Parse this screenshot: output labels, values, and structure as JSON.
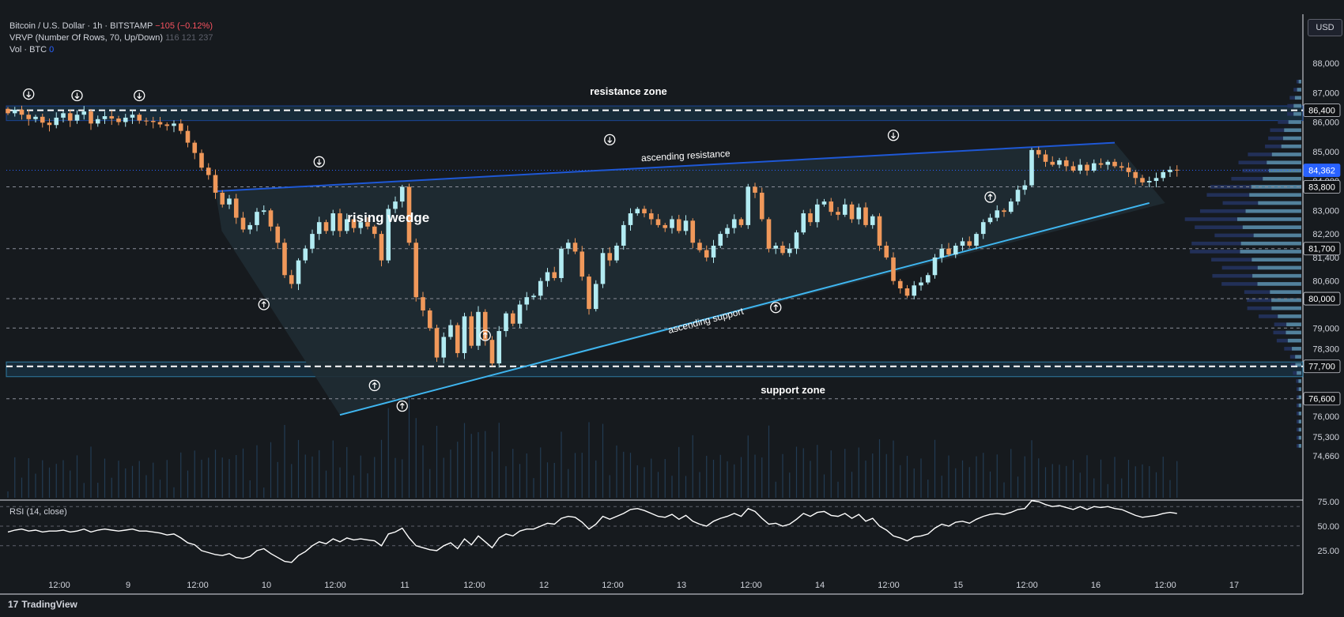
{
  "header": {
    "symbol": "Bitcoin / U.S. Dollar · 1h · BITSTAMP",
    "change": "−105 (−0.12%)",
    "vrvp_label": "VRVP (Number Of Rows, 70, Up/Down)",
    "vrvp_values": [
      "116",
      "121",
      "237"
    ],
    "vol_label": "Vol · BTC",
    "vol_value": "0"
  },
  "currency_button": "USD",
  "branding": "TradingView",
  "colors": {
    "background": "#161a1e",
    "up": "#b2ebf2",
    "down": "#f0985a",
    "wedge_fill": "#1f2c33",
    "resistance_line": "#1e58d6",
    "support_line": "#3fb6f0",
    "zone": "#1c3d52",
    "rsi": "#ffffff"
  },
  "chart_data": [
    {
      "type": "candlestick",
      "title": "Bitcoin / U.S. Dollar · 1h · BITSTAMP",
      "xlabel": "",
      "ylabel": "",
      "ylim": [
        74400,
        89200
      ],
      "y_ticks": [
        "88,000",
        "87,000",
        "86,000",
        "85,000",
        "84,000",
        "83,000",
        "82,200",
        "81,400",
        "80,600",
        "79,000",
        "78,300",
        "76,000",
        "75,300",
        "74,660"
      ],
      "x_ticks": [
        "12:00",
        "9",
        "12:00",
        "10",
        "12:00",
        "11",
        "12:00",
        "12",
        "12:00",
        "13",
        "12:00",
        "14",
        "12:00",
        "15",
        "12:00",
        "16",
        "12:00",
        "17"
      ],
      "price_levels": [
        {
          "label": "86,400",
          "value": 86400,
          "style": "dashed"
        },
        {
          "label": "84,362",
          "value": 84362,
          "style": "current"
        },
        {
          "label": "83,800",
          "value": 83800,
          "style": "dashed"
        },
        {
          "label": "81,700",
          "value": 81700,
          "style": "dashed"
        },
        {
          "label": "80,000",
          "value": 80000,
          "style": "dashed"
        },
        {
          "label": "77,700",
          "value": 77700,
          "style": "dashed"
        },
        {
          "label": "76,600",
          "value": 76600,
          "style": "dashed"
        }
      ],
      "extra_dashed_levels": [
        79000
      ],
      "zones": [
        {
          "label": "resistance zone",
          "low": 86050,
          "high": 86550
        },
        {
          "label": "support zone",
          "low": 77350,
          "high": 77850
        }
      ],
      "annotations": [
        {
          "text": "rising wedge",
          "x": 55,
          "y": 82600
        },
        {
          "text": "ascending resistance",
          "x": 98,
          "y": 84750
        },
        {
          "text": "ascending support",
          "x": 101,
          "y": 79150
        }
      ],
      "trendlines": [
        {
          "name": "ascending resistance",
          "x0": 30,
          "y0": 83650,
          "x1": 160,
          "y1": 85300
        },
        {
          "name": "ascending support",
          "x0": 48,
          "y0": 76050,
          "x1": 165,
          "y1": 83250
        }
      ],
      "pivots": [
        {
          "x": 3,
          "y": 86950,
          "dir": "down"
        },
        {
          "x": 10,
          "y": 86900,
          "dir": "down"
        },
        {
          "x": 19,
          "y": 86900,
          "dir": "down"
        },
        {
          "x": 45,
          "y": 84650,
          "dir": "down"
        },
        {
          "x": 87,
          "y": 85400,
          "dir": "down"
        },
        {
          "x": 128,
          "y": 85550,
          "dir": "down"
        },
        {
          "x": 37,
          "y": 79800,
          "dir": "up"
        },
        {
          "x": 53,
          "y": 77050,
          "dir": "up"
        },
        {
          "x": 57,
          "y": 76350,
          "dir": "up"
        },
        {
          "x": 69,
          "y": 78750,
          "dir": "up"
        },
        {
          "x": 111,
          "y": 79700,
          "dir": "up"
        },
        {
          "x": 142,
          "y": 83450,
          "dir": "up"
        }
      ],
      "series": [
        {
          "name": "",
          "close": [
            86300,
            86420,
            86250,
            86100,
            86180,
            85980,
            85900,
            86150,
            86300,
            86050,
            86250,
            86360,
            85950,
            86100,
            86200,
            86120,
            86000,
            86150,
            86250,
            86050,
            86040,
            86000,
            85920,
            85870,
            85950,
            85700,
            85300,
            84950,
            84450,
            84200,
            83600,
            83200,
            83400,
            82750,
            82350,
            82500,
            82950,
            83000,
            82450,
            81900,
            80800,
            80500,
            81300,
            81700,
            82200,
            82600,
            82300,
            82900,
            82300,
            82700,
            82400,
            82600,
            82450,
            82200,
            81300,
            83050,
            83300,
            83800,
            81900,
            80050,
            79600,
            79000,
            78000,
            78700,
            79100,
            78150,
            79400,
            78400,
            79550,
            78600,
            77800,
            78900,
            79500,
            79150,
            79800,
            80050,
            80100,
            80600,
            80900,
            80700,
            81700,
            81900,
            81600,
            80750,
            79650,
            80500,
            81550,
            81300,
            81800,
            82500,
            82900,
            83050,
            82900,
            82700,
            82500,
            82400,
            82700,
            82300,
            82650,
            81900,
            81650,
            81400,
            81800,
            82200,
            82400,
            82700,
            82500,
            83800,
            83600,
            82700,
            81700,
            81800,
            81550,
            81700,
            82250,
            82900,
            82600,
            83200,
            83300,
            82950,
            82850,
            83200,
            82700,
            83100,
            82500,
            82800,
            81800,
            81400,
            80600,
            80350,
            80100,
            80450,
            80550,
            80800,
            81400,
            81700,
            81500,
            81800,
            81950,
            81800,
            82200,
            82600,
            82750,
            83000,
            82950,
            83300,
            83700,
            83850,
            85050,
            84900,
            84650,
            84550,
            84700,
            84500,
            84350,
            84550,
            84350,
            84600,
            84550,
            84650,
            84500,
            84450,
            84300,
            84100,
            83950,
            84000,
            84100,
            84300,
            84380,
            84362
          ],
          "color_up": "#b2ebf2",
          "color_down": "#f0985a"
        }
      ]
    },
    {
      "type": "line",
      "title": "RSI (14, close)",
      "xlabel": "",
      "ylabel": "",
      "ylim": [
        10,
        82
      ],
      "y_ticks": [
        "75.00",
        "50.00",
        "25.00"
      ],
      "levels": [
        70,
        50,
        30
      ],
      "series": [
        {
          "name": "",
          "values": [
            44,
            46,
            47,
            45,
            46,
            44,
            45,
            45,
            46,
            44,
            45,
            47,
            44,
            46,
            47,
            46,
            45,
            46,
            47,
            45,
            45,
            44,
            43,
            41,
            42,
            38,
            33,
            31,
            25,
            23,
            21,
            20,
            22,
            18,
            17,
            19,
            25,
            27,
            22,
            18,
            14,
            13,
            20,
            24,
            30,
            34,
            32,
            37,
            34,
            38,
            36,
            37,
            36,
            35,
            30,
            42,
            44,
            48,
            38,
            30,
            28,
            26,
            25,
            30,
            33,
            27,
            37,
            31,
            40,
            34,
            28,
            38,
            42,
            40,
            45,
            47,
            47,
            50,
            53,
            52,
            58,
            60,
            59,
            54,
            47,
            52,
            60,
            57,
            60,
            63,
            67,
            68,
            66,
            63,
            60,
            59,
            62,
            57,
            61,
            55,
            52,
            50,
            55,
            58,
            60,
            63,
            60,
            68,
            65,
            58,
            52,
            53,
            50,
            52,
            57,
            63,
            60,
            64,
            65,
            61,
            60,
            63,
            58,
            62,
            55,
            58,
            50,
            46,
            40,
            38,
            35,
            39,
            40,
            42,
            48,
            52,
            50,
            54,
            55,
            53,
            57,
            60,
            62,
            63,
            62,
            64,
            67,
            68,
            76,
            75,
            72,
            70,
            71,
            69,
            67,
            70,
            67,
            70,
            69,
            70,
            68,
            67,
            64,
            61,
            59,
            60,
            61,
            63,
            64,
            63
          ]
        }
      ]
    }
  ]
}
